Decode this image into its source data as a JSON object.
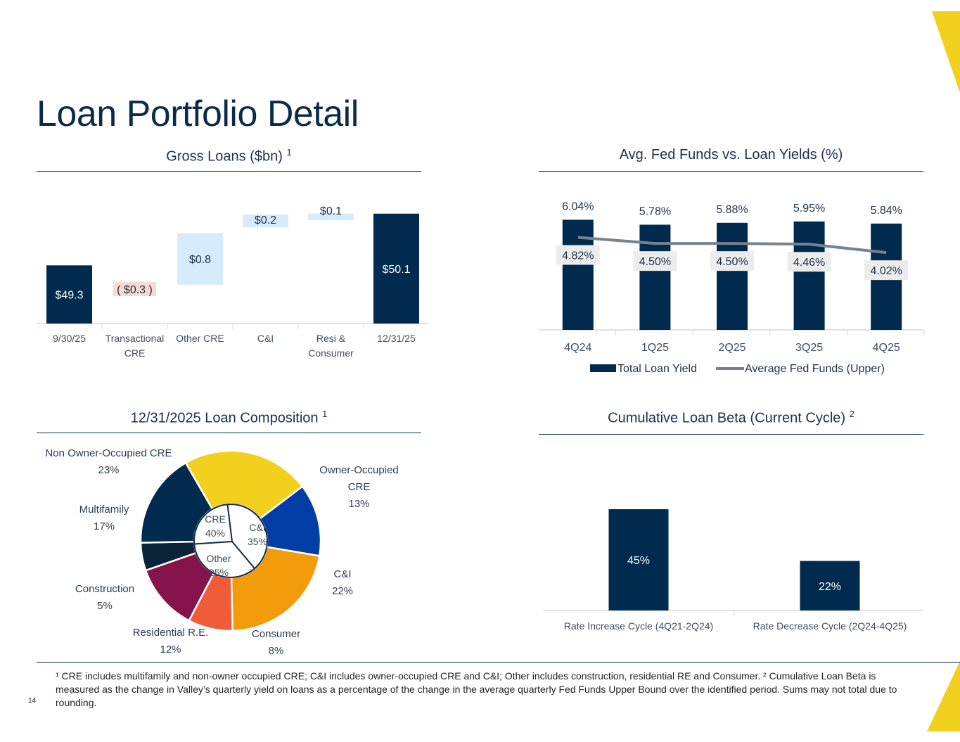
{
  "page": {
    "title": "Loan Portfolio Detail",
    "page_number": "14",
    "footnote": "¹ CRE includes multifamily and non-owner occupied CRE; C&I includes owner-occupied CRE and C&I; Other includes construction, residential RE and Consumer.  ² Cumulative Loan Beta is measured as the change in Valley’s quarterly yield on loans as a percentage of the change in the average quarterly Fed Funds Upper Bound over the identified period.  Sums may not total due to rounding."
  },
  "colors": {
    "navy": "#002a4e",
    "increase": "#d6ebfb",
    "decrease": "#f8d9d3",
    "fed_line": "#77818f",
    "yellow": "#f2d01e",
    "blue": "#003da5",
    "orange": "#f29c0c",
    "red_orange": "#f05b3a",
    "maroon": "#86134c",
    "dark": "#0b2338"
  },
  "chart_data": [
    {
      "id": "gross-loans",
      "type": "waterfall",
      "title": "Gross Loans ($bn)",
      "title_sup": "1",
      "categories": [
        "9/30/25",
        "Transactional CRE",
        "Other CRE",
        "C&I",
        "Resi & Consumer",
        "12/31/25"
      ],
      "category_lines": [
        [
          "9/30/25"
        ],
        [
          "Transactional",
          "CRE"
        ],
        [
          "Other CRE"
        ],
        [
          "C&I"
        ],
        [
          "Resi &",
          "Consumer"
        ],
        [
          "12/31/25"
        ]
      ],
      "values": [
        49.3,
        -0.3,
        0.8,
        0.2,
        0.1,
        50.1
      ],
      "kinds": [
        "total",
        "delta",
        "delta",
        "delta",
        "delta",
        "total"
      ],
      "labels": [
        "$49.3",
        "( $0.3 )",
        "$0.8",
        "$0.2",
        "$0.1",
        "$50.1"
      ],
      "ylim": [
        48.4,
        50.25
      ]
    },
    {
      "id": "fed-funds",
      "type": "bar+line",
      "title": "Avg. Fed Funds vs. Loan Yields (%)",
      "categories": [
        "4Q24",
        "1Q25",
        "2Q25",
        "3Q25",
        "4Q25"
      ],
      "series": [
        {
          "name": "Total Loan Yield",
          "type": "bar",
          "values": [
            6.04,
            5.78,
            5.88,
            5.95,
            5.84
          ],
          "labels": [
            "6.04%",
            "5.78%",
            "5.88%",
            "5.95%",
            "5.84%"
          ]
        },
        {
          "name": "Average Fed Funds (Upper)",
          "type": "line",
          "values": [
            4.82,
            4.5,
            4.5,
            4.46,
            4.02
          ],
          "labels": [
            "4.82%",
            "4.50%",
            "4.50%",
            "4.46%",
            "4.02%"
          ]
        }
      ],
      "ylim": [
        0,
        6.5
      ]
    },
    {
      "id": "loan-composition",
      "type": "pie",
      "title": "12/31/2025 Loan Composition",
      "title_sup": "1",
      "slices": [
        {
          "name": "Non Owner-Occupied CRE",
          "value": 23,
          "label": "23%",
          "color": "#f2d01e",
          "name_lines": [
            "Non Owner-Occupied CRE"
          ]
        },
        {
          "name": "Owner-Occupied CRE",
          "value": 13,
          "label": "13%",
          "color": "#003da5",
          "name_lines": [
            "Owner-Occupied",
            "CRE"
          ]
        },
        {
          "name": "C&I",
          "value": 22,
          "label": "22%",
          "color": "#f29c0c",
          "name_lines": [
            "C&I"
          ]
        },
        {
          "name": "Consumer",
          "value": 8,
          "label": "8%",
          "color": "#f05b3a",
          "name_lines": [
            "Consumer"
          ]
        },
        {
          "name": "Residential R.E.",
          "value": 12,
          "label": "12%",
          "color": "#86134c",
          "name_lines": [
            "Residential R.E."
          ]
        },
        {
          "name": "Construction",
          "value": 5,
          "label": "5%",
          "color": "#0b2338",
          "name_lines": [
            "Construction"
          ]
        },
        {
          "name": "Multifamily",
          "value": 17,
          "label": "17%",
          "color": "#002a4e",
          "name_lines": [
            "Multifamily"
          ]
        }
      ],
      "inner": [
        {
          "name": "CRE",
          "value": 40,
          "label": "40%"
        },
        {
          "name": "C&I",
          "value": 35,
          "label": "35%"
        },
        {
          "name": "Other",
          "value": 25,
          "label": "25%"
        }
      ]
    },
    {
      "id": "loan-beta",
      "type": "bar",
      "title": "Cumulative Loan Beta (Current Cycle)",
      "title_sup": "2",
      "categories": [
        "Rate Increase Cycle (4Q21-2Q24)",
        "Rate Decrease Cycle (2Q24-4Q25)"
      ],
      "values": [
        45,
        22
      ],
      "labels": [
        "45%",
        "22%"
      ],
      "ylim": [
        0,
        50
      ]
    }
  ]
}
